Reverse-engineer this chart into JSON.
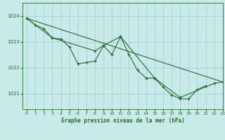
{
  "title": "Graphe pression niveau de la mer (hPa)",
  "background_color": "#c8eaea",
  "grid_color": "#9ecece",
  "line_color": "#2a6b2a",
  "marker_color": "#2a6b2a",
  "xlim": [
    -0.5,
    23
  ],
  "ylim": [
    1020.4,
    1024.5
  ],
  "yticks": [
    1021,
    1022,
    1023,
    1024
  ],
  "xticks": [
    0,
    1,
    2,
    3,
    4,
    5,
    6,
    7,
    8,
    9,
    10,
    11,
    12,
    13,
    14,
    15,
    16,
    17,
    18,
    19,
    20,
    21,
    22,
    23
  ],
  "series1_x": [
    0,
    1,
    2,
    3,
    4,
    5,
    6,
    7,
    8,
    9,
    10,
    11,
    12,
    13,
    14,
    15,
    16,
    17,
    18,
    19,
    20,
    21
  ],
  "series1_y": [
    1023.9,
    1023.65,
    1023.5,
    1023.15,
    1023.1,
    1022.8,
    1022.15,
    1022.2,
    1022.25,
    1022.85,
    1022.5,
    1023.2,
    1022.5,
    1021.9,
    1021.6,
    1021.6,
    1021.25,
    1020.95,
    1020.8,
    1020.8,
    1021.15,
    1021.3
  ],
  "series2_x": [
    0,
    3,
    8,
    9,
    11,
    15,
    18,
    22,
    23
  ],
  "series2_y": [
    1023.9,
    1023.15,
    1022.65,
    1022.85,
    1023.2,
    1021.6,
    1020.85,
    1021.4,
    1021.45
  ],
  "series3_x": [
    0,
    23
  ],
  "series3_y": [
    1023.9,
    1021.45
  ]
}
